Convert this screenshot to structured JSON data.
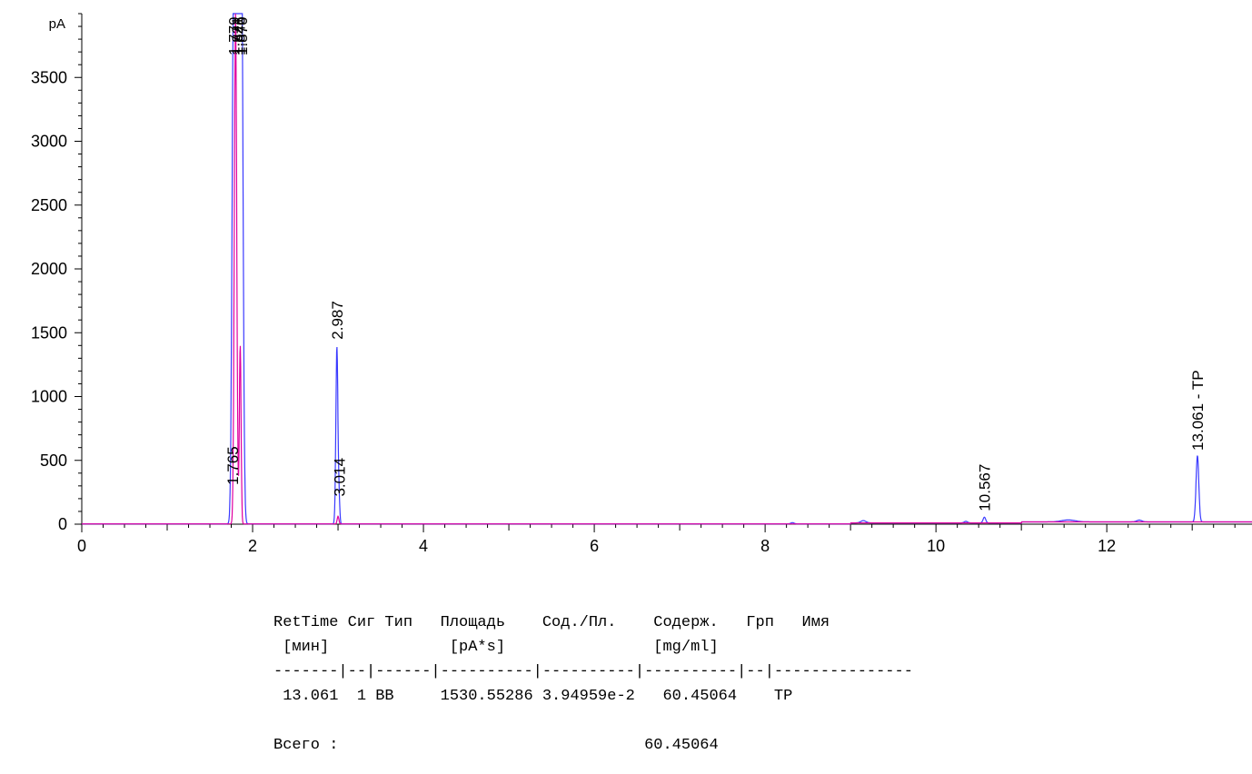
{
  "chart_data": {
    "type": "line",
    "y_unit": "pA",
    "xlim": [
      0,
      13.7
    ],
    "ylim": [
      0,
      4000
    ],
    "x_ticks": [
      0,
      2,
      4,
      6,
      8,
      10,
      12
    ],
    "y_ticks": [
      0,
      500,
      1000,
      1500,
      2000,
      2500,
      3000,
      3500
    ],
    "grid": false,
    "series": [
      {
        "color": "#3a3aff",
        "peaks": [
          {
            "rt": 1.765,
            "height": 250,
            "width": 0.012
          },
          {
            "rt": 1.779,
            "height": 4000,
            "width": 0.018
          },
          {
            "rt": 1.821,
            "height": 4000,
            "width": 0.018
          },
          {
            "rt": 1.846,
            "height": 4000,
            "width": 0.018
          },
          {
            "rt": 1.87,
            "height": 4000,
            "width": 0.018
          },
          {
            "rt": 2.987,
            "height": 1390,
            "width": 0.012
          },
          {
            "rt": 3.014,
            "height": 160,
            "width": 0.008
          },
          {
            "rt": 8.32,
            "height": 10,
            "width": 0.02
          },
          {
            "rt": 9.15,
            "height": 18,
            "width": 0.03
          },
          {
            "rt": 10.35,
            "height": 12,
            "width": 0.02
          },
          {
            "rt": 10.567,
            "height": 45,
            "width": 0.015
          },
          {
            "rt": 11.55,
            "height": 15,
            "width": 0.08
          },
          {
            "rt": 12.38,
            "height": 14,
            "width": 0.03
          },
          {
            "rt": 13.061,
            "height": 520,
            "width": 0.016
          }
        ]
      },
      {
        "color": "#e000a0",
        "peaks": [
          {
            "rt": 1.8,
            "height": 4000,
            "width": 0.014
          },
          {
            "rt": 1.855,
            "height": 1400,
            "width": 0.01
          },
          {
            "rt": 3.0,
            "height": 60,
            "width": 0.01
          }
        ]
      }
    ],
    "annotations": [
      {
        "rt": 1.765,
        "text": "1.765"
      },
      {
        "rt": 1.779,
        "text": "1.779"
      },
      {
        "rt": 1.821,
        "text": "1.821"
      },
      {
        "rt": 1.846,
        "text": "1.846"
      },
      {
        "rt": 1.87,
        "text": "1.870"
      },
      {
        "rt": 2.987,
        "text": "2.987"
      },
      {
        "rt": 3.014,
        "text": "3.014"
      },
      {
        "rt": 10.567,
        "text": "10.567"
      },
      {
        "rt": 13.061,
        "text": "13.061 - TP"
      }
    ]
  },
  "report": {
    "lines": [
      "RetTime Сиг Тип   Площадь    Сод./Пл.    Содерж.   Грп   Имя",
      " [мин]             [pA*s]                [mg/ml]",
      "-------|--|------|----------|----------|----------|--|---------------",
      " 13.061  1 BB     1530.55286 3.94959e-2   60.45064    TP",
      "",
      "Всего :                                 60.45064"
    ]
  }
}
